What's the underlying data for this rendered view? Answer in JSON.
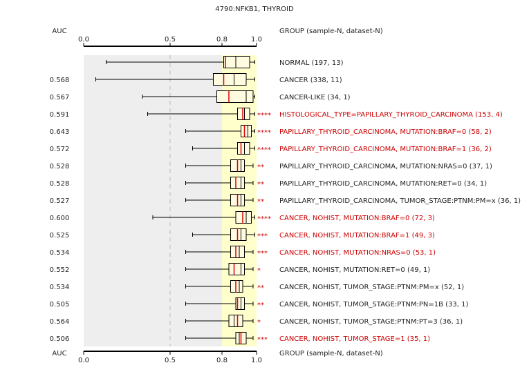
{
  "chart_data": {
    "type": "boxplot",
    "title": "4790:NFKB1, THYROID",
    "axis_label": "AUC",
    "group_header": "GROUP (sample-N, dataset-N)",
    "xlim": [
      0.0,
      1.0
    ],
    "ticks": [
      {
        "value": 0.0,
        "label": "0.0"
      },
      {
        "value": 0.5,
        "label": "0.5"
      },
      {
        "value": 0.8,
        "label": "0.8"
      },
      {
        "value": 1.0,
        "label": "1.0"
      }
    ],
    "gray_band": [
      0.0,
      0.8
    ],
    "yellow_band": [
      0.8,
      1.0
    ],
    "colors": {
      "highlight": "#cc0000",
      "normal": "#222222",
      "box_fill": "#fffbe0",
      "gray_band": "#eeeeee",
      "yellow_band": "#ffffcc",
      "median": "#dd0000"
    },
    "rows": [
      {
        "auc": "",
        "label": "NORMAL (197, 13)",
        "stars": "",
        "highlight": false,
        "min": 0.13,
        "q1": 0.81,
        "median": 0.82,
        "q3": 0.96,
        "max": 0.99,
        "mean": 0.88
      },
      {
        "auc": "0.568",
        "label": "CANCER (338, 11)",
        "stars": "",
        "highlight": false,
        "min": 0.07,
        "q1": 0.75,
        "median": 0.81,
        "q3": 0.94,
        "max": 0.99,
        "mean": 0.87
      },
      {
        "auc": "0.567",
        "label": "CANCER-LIKE (34, 1)",
        "stars": "",
        "highlight": false,
        "min": 0.34,
        "q1": 0.77,
        "median": 0.84,
        "q3": 0.98,
        "max": 0.99,
        "mean": 0.94
      },
      {
        "auc": "0.591",
        "label": "HISTOLOGICAL_TYPE=PAPILLARY_THYROID_CARCINOMA (153, 4)",
        "stars": "****",
        "highlight": true,
        "min": 0.37,
        "q1": 0.89,
        "median": 0.92,
        "q3": 0.96,
        "max": 0.99,
        "mean": 0.93
      },
      {
        "auc": "0.643",
        "label": "PAPILLARY_THYROID_CARCINOMA, MUTATION:BRAF=0 (58, 2)",
        "stars": "****",
        "highlight": true,
        "min": 0.59,
        "q1": 0.91,
        "median": 0.93,
        "q3": 0.97,
        "max": 0.99,
        "mean": 0.95
      },
      {
        "auc": "0.572",
        "label": "PAPILLARY_THYROID_CARCINOMA, MUTATION:BRAF=1 (36, 2)",
        "stars": "****",
        "highlight": true,
        "min": 0.63,
        "q1": 0.89,
        "median": 0.91,
        "q3": 0.96,
        "max": 0.99,
        "mean": 0.93
      },
      {
        "auc": "0.528",
        "label": "PAPILLARY_THYROID_CARCINOMA, MUTATION:NRAS=0 (37, 1)",
        "stars": "**",
        "highlight": false,
        "min": 0.59,
        "q1": 0.85,
        "median": 0.89,
        "q3": 0.93,
        "max": 0.98,
        "mean": 0.91
      },
      {
        "auc": "0.528",
        "label": "PAPILLARY_THYROID_CARCINOMA, MUTATION:RET=0 (34, 1)",
        "stars": "**",
        "highlight": false,
        "min": 0.59,
        "q1": 0.85,
        "median": 0.88,
        "q3": 0.93,
        "max": 0.98,
        "mean": 0.91
      },
      {
        "auc": "0.527",
        "label": "PAPILLARY_THYROID_CARCINOMA, TUMOR_STAGE:PTNM:PM=x (36, 1)",
        "stars": "**",
        "highlight": false,
        "min": 0.59,
        "q1": 0.85,
        "median": 0.89,
        "q3": 0.93,
        "max": 0.98,
        "mean": 0.91
      },
      {
        "auc": "0.600",
        "label": "CANCER, NOHIST, MUTATION:BRAF=0 (72, 3)",
        "stars": "****",
        "highlight": true,
        "min": 0.4,
        "q1": 0.88,
        "median": 0.92,
        "q3": 0.97,
        "max": 0.99,
        "mean": 0.94
      },
      {
        "auc": "0.525",
        "label": "CANCER, NOHIST, MUTATION:BRAF=1 (49, 3)",
        "stars": "***",
        "highlight": true,
        "min": 0.63,
        "q1": 0.85,
        "median": 0.89,
        "q3": 0.94,
        "max": 0.99,
        "mean": 0.91
      },
      {
        "auc": "0.534",
        "label": "CANCER, NOHIST, MUTATION:NRAS=0 (53, 1)",
        "stars": "***",
        "highlight": true,
        "min": 0.59,
        "q1": 0.85,
        "median": 0.88,
        "q3": 0.93,
        "max": 0.98,
        "mean": 0.9
      },
      {
        "auc": "0.552",
        "label": "CANCER, NOHIST, MUTATION:RET=0 (49, 1)",
        "stars": "*",
        "highlight": false,
        "min": 0.59,
        "q1": 0.84,
        "median": 0.87,
        "q3": 0.93,
        "max": 0.98,
        "mean": 0.91
      },
      {
        "auc": "0.534",
        "label": "CANCER, NOHIST, TUMOR_STAGE:PTNM:PM=x (52, 1)",
        "stars": "**",
        "highlight": false,
        "min": 0.59,
        "q1": 0.85,
        "median": 0.88,
        "q3": 0.92,
        "max": 0.98,
        "mean": 0.9
      },
      {
        "auc": "0.505",
        "label": "CANCER, NOHIST, TUMOR_STAGE:PTNM:PN=1B (33, 1)",
        "stars": "**",
        "highlight": false,
        "min": 0.59,
        "q1": 0.88,
        "median": 0.89,
        "q3": 0.93,
        "max": 0.98,
        "mean": 0.91
      },
      {
        "auc": "0.564",
        "label": "CANCER, NOHIST, TUMOR_STAGE:PTNM:PT=3 (36, 1)",
        "stars": "*",
        "highlight": false,
        "min": 0.59,
        "q1": 0.84,
        "median": 0.89,
        "q3": 0.92,
        "max": 0.98,
        "mean": 0.87
      },
      {
        "auc": "0.506",
        "label": "CANCER, NOHIST, TUMOR_STAGE=1 (35, 1)",
        "stars": "***",
        "highlight": true,
        "min": 0.59,
        "q1": 0.88,
        "median": 0.91,
        "q3": 0.94,
        "max": 0.98,
        "mean": 0.9
      }
    ]
  }
}
